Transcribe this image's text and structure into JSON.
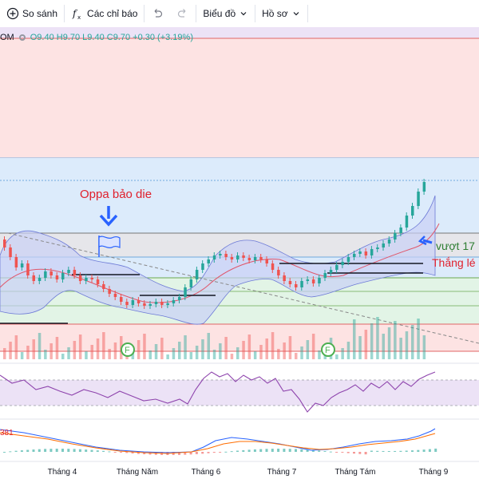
{
  "toolbar": {
    "compare": "So sánh",
    "indicators": "Các chỉ báo",
    "chart_type": "Biểu đồ",
    "profile": "Hồ sơ"
  },
  "legend": {
    "symbol": "OM",
    "ohlc": "O9.40 H9.70 L9.40 C9.70 +0.30 (+3.19%)"
  },
  "annotations": {
    "main_note": "Oppa bảo die",
    "breakout_note": "vượt 17",
    "win_note": "Thắng lé"
  },
  "indicator": {
    "macd_value": "381"
  },
  "x_axis": [
    "Tháng 4",
    "Tháng Năm",
    "Tháng 6",
    "Tháng 7",
    "Tháng Tám",
    "Tháng 9"
  ],
  "colors": {
    "up": "#26a69a",
    "down": "#ef5350",
    "zone_red": "#fde3e3",
    "zone_blue": "#dcebfb",
    "zone_green": "#e2f4e6",
    "band": "#d3d9f6",
    "annotation_red": "#e0202c"
  }
}
